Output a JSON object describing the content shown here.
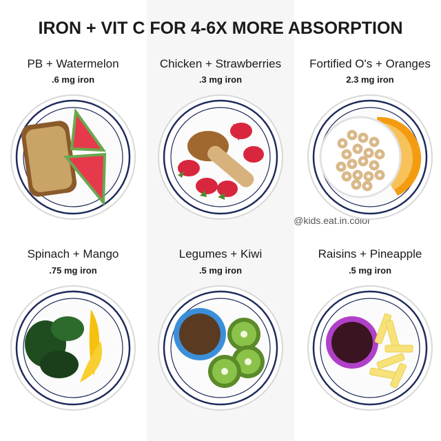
{
  "header": {
    "title": "IRON + VIT C FOR 4-6X  MORE ABSORPTION"
  },
  "items": [
    {
      "label": "PB + Watermelon",
      "iron": ".6 mg iron"
    },
    {
      "label": "Chicken + Strawberries",
      "iron": ".3 mg iron"
    },
    {
      "label": "Fortified O's + Oranges",
      "iron": "2.3 mg iron"
    },
    {
      "label": "Spinach + Mango",
      "iron": ".75 mg iron"
    },
    {
      "label": "Legumes + Kiwi",
      "iron": ".5 mg iron"
    },
    {
      "label": "Raisins + Pineapple",
      "iron": ".5 mg iron"
    }
  ],
  "watermark": "@kids.eat.in.color"
}
